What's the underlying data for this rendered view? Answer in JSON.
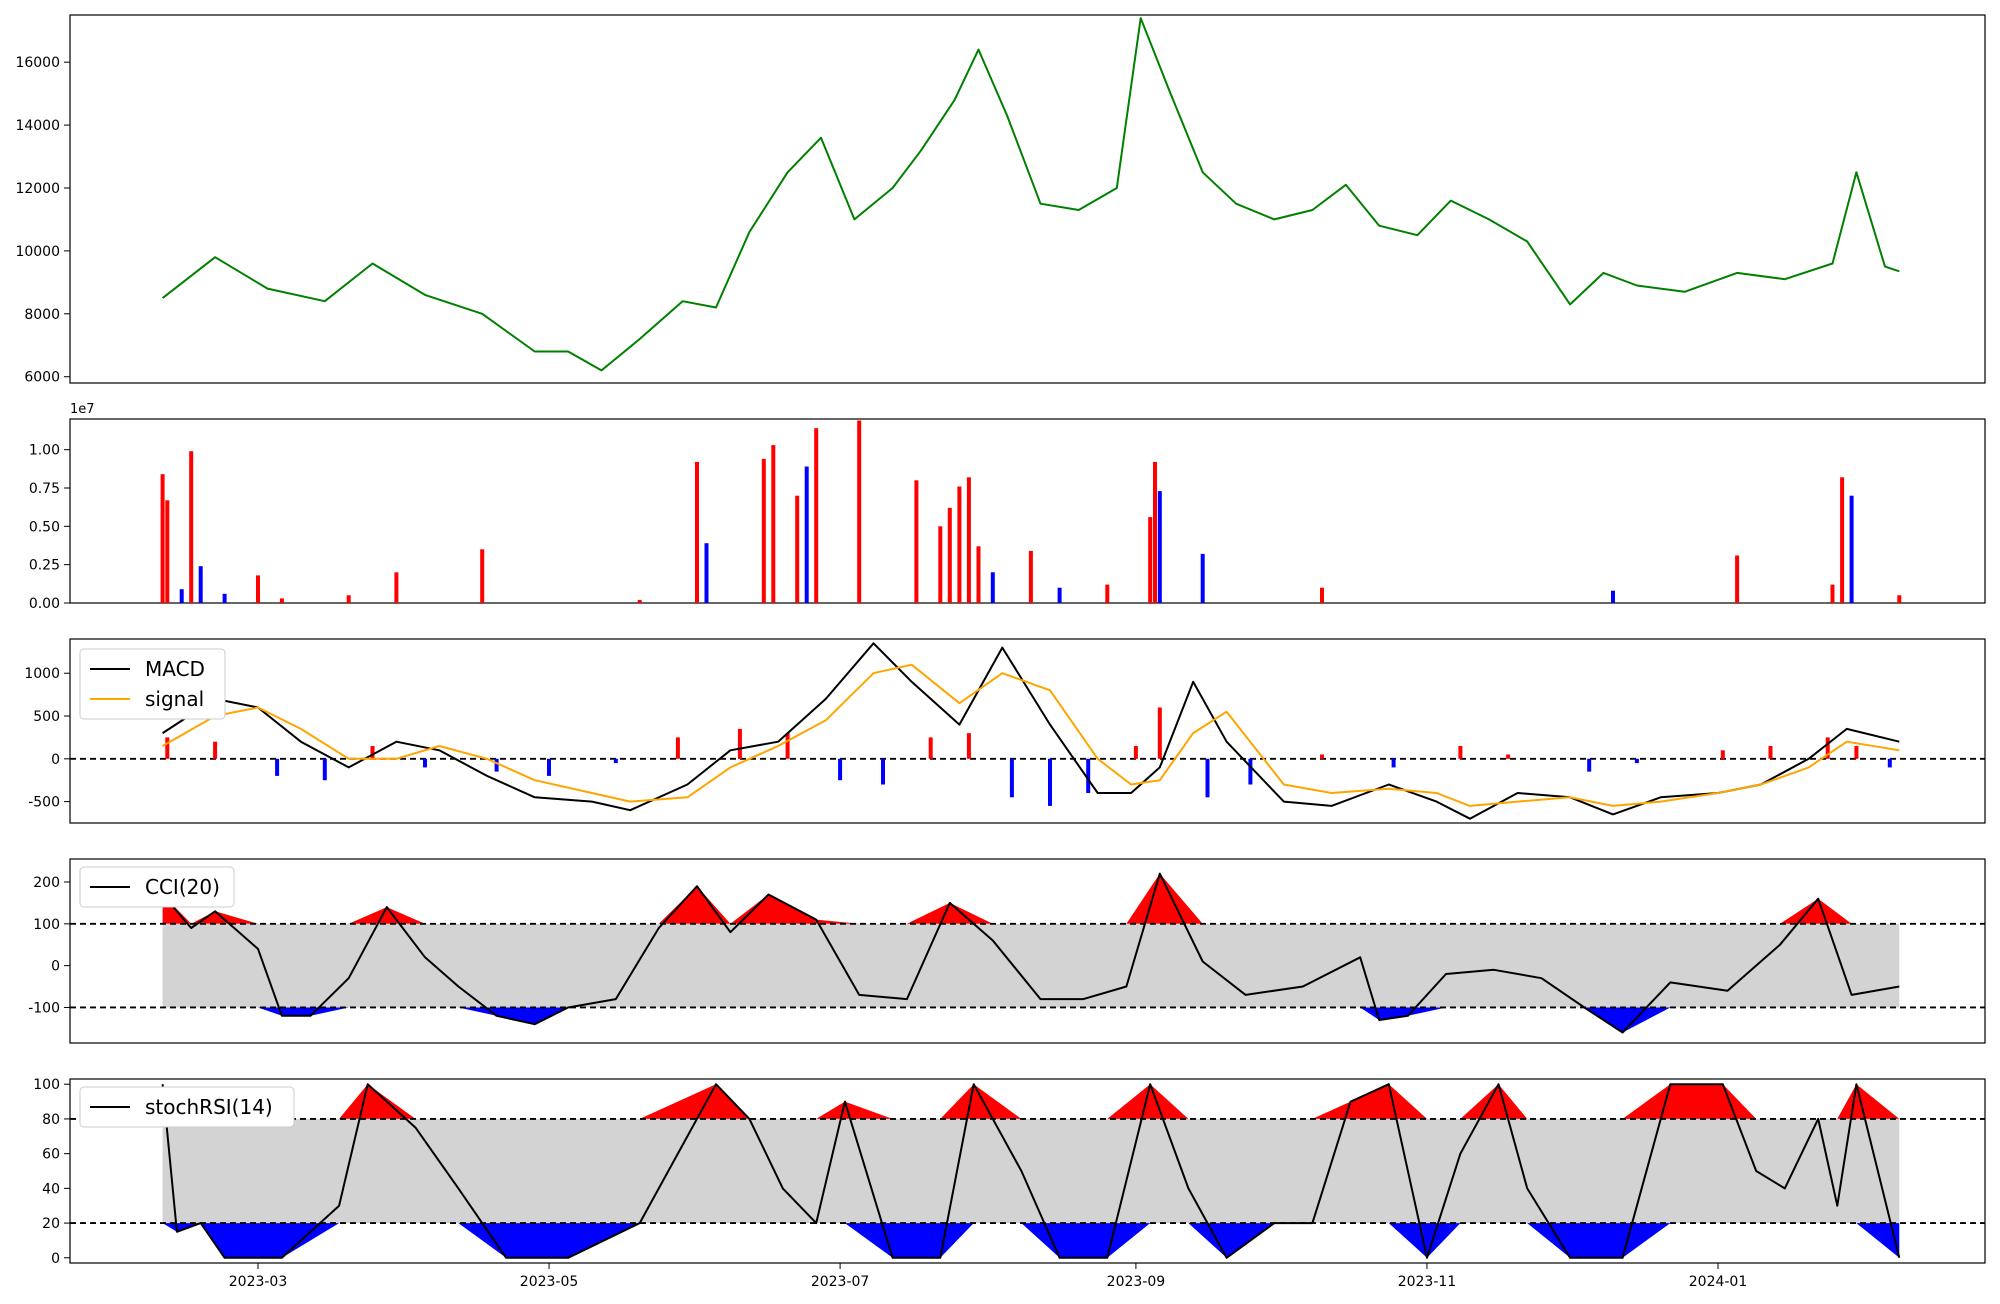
{
  "colors": {
    "price": "#008000",
    "up": "#ff0000",
    "down": "#0000ff",
    "macd": "#000000",
    "signal": "#ffa500",
    "band_fill": "#d3d3d3",
    "threshold_line": "#000000"
  },
  "x_axis": {
    "ticks": [
      "2023-03",
      "2023-05",
      "2023-07",
      "2023-09",
      "2023-11",
      "2024-01"
    ],
    "date_range": [
      "2023-02-09",
      "2024-02-08"
    ]
  },
  "panels": {
    "price": {
      "ylim": [
        5800,
        17500
      ],
      "ticks": [
        "6000",
        "8000",
        "10000",
        "12000",
        "14000",
        "16000"
      ]
    },
    "volume": {
      "offset_label": "1e7",
      "ylim": [
        0,
        1.2
      ],
      "ticks": [
        "0.00",
        "0.25",
        "0.50",
        "0.75",
        "1.00"
      ]
    },
    "macd": {
      "ylim": [
        -750,
        1400
      ],
      "ticks": [
        "-500",
        "0",
        "500",
        "1000"
      ],
      "legend": [
        "MACD",
        "signal"
      ]
    },
    "cci": {
      "ylim": [
        -185,
        255
      ],
      "ticks": [
        "-100",
        "0",
        "100",
        "200"
      ],
      "legend": [
        "CCI(20)"
      ],
      "bands": [
        100,
        -100
      ]
    },
    "stochrsi": {
      "ylim": [
        -3,
        103
      ],
      "ticks": [
        "0",
        "20",
        "40",
        "60",
        "80",
        "100"
      ],
      "legend": [
        "stochRSI(14)"
      ],
      "bands": [
        80,
        20
      ]
    }
  },
  "chart_data": [
    {
      "type": "line",
      "panel": "price",
      "x": [
        "2023-02-09",
        "2023-02-20",
        "2023-03-03",
        "2023-03-15",
        "2023-03-25",
        "2023-04-05",
        "2023-04-17",
        "2023-04-28",
        "2023-05-05",
        "2023-05-12",
        "2023-05-20",
        "2023-05-29",
        "2023-06-05",
        "2023-06-12",
        "2023-06-20",
        "2023-06-27",
        "2023-07-04",
        "2023-07-12",
        "2023-07-18",
        "2023-07-25",
        "2023-07-30",
        "2023-08-05",
        "2023-08-12",
        "2023-08-20",
        "2023-08-28",
        "2023-09-02",
        "2023-09-08",
        "2023-09-15",
        "2023-09-22",
        "2023-09-30",
        "2023-10-08",
        "2023-10-15",
        "2023-10-22",
        "2023-10-30",
        "2023-11-06",
        "2023-11-14",
        "2023-11-22",
        "2023-12-01",
        "2023-12-08",
        "2023-12-15",
        "2023-12-25",
        "2024-01-05",
        "2024-01-15",
        "2024-01-25",
        "2024-01-30",
        "2024-02-05",
        "2024-02-08"
      ],
      "y": [
        8500,
        9800,
        8800,
        8400,
        9600,
        8600,
        8000,
        6800,
        6800,
        6200,
        7200,
        8400,
        8200,
        10600,
        12500,
        13600,
        11000,
        12000,
        13200,
        14800,
        16400,
        14300,
        11500,
        11300,
        12000,
        17400,
        15100,
        12500,
        11500,
        11000,
        11300,
        12100,
        10800,
        10500,
        11600,
        11000,
        10300,
        8300,
        9300,
        8900,
        8700,
        9300,
        9100,
        9600,
        12500,
        9500,
        9350
      ]
    },
    {
      "type": "bar",
      "panel": "volume",
      "x": [
        "2023-02-09",
        "2023-02-10",
        "2023-02-13",
        "2023-02-15",
        "2023-02-17",
        "2023-02-22",
        "2023-03-01",
        "2023-03-06",
        "2023-03-20",
        "2023-03-30",
        "2023-04-17",
        "2023-05-20",
        "2023-06-01",
        "2023-06-03",
        "2023-06-15",
        "2023-06-17",
        "2023-06-22",
        "2023-06-24",
        "2023-06-26",
        "2023-07-05",
        "2023-07-17",
        "2023-07-22",
        "2023-07-24",
        "2023-07-26",
        "2023-07-28",
        "2023-07-30",
        "2023-08-02",
        "2023-08-10",
        "2023-08-16",
        "2023-08-26",
        "2023-09-04",
        "2023-09-05",
        "2023-09-06",
        "2023-09-15",
        "2023-10-10",
        "2023-12-10",
        "2024-01-05",
        "2024-01-25",
        "2024-01-27",
        "2024-01-29",
        "2024-02-08"
      ],
      "values": [
        0.84,
        0.67,
        0.09,
        0.99,
        0.24,
        0.06,
        0.18,
        0.03,
        0.05,
        0.2,
        0.35,
        0.02,
        0.92,
        0.39,
        0.94,
        1.03,
        0.7,
        0.89,
        1.14,
        1.19,
        0.8,
        0.5,
        0.62,
        0.76,
        0.82,
        0.37,
        0.2,
        0.34,
        0.1,
        0.12,
        0.56,
        0.92,
        0.73,
        0.32,
        0.1,
        0.08,
        0.31,
        0.12,
        0.82,
        0.7,
        0.05
      ],
      "direction": [
        "up",
        "up",
        "down",
        "up",
        "down",
        "down",
        "up",
        "up",
        "up",
        "up",
        "up",
        "up",
        "up",
        "down",
        "up",
        "up",
        "up",
        "down",
        "up",
        "up",
        "up",
        "up",
        "up",
        "up",
        "up",
        "up",
        "down",
        "up",
        "down",
        "up",
        "up",
        "up",
        "down",
        "down",
        "up",
        "down",
        "up",
        "up",
        "up",
        "down",
        "up"
      ]
    },
    {
      "type": "line",
      "panel": "macd",
      "series": [
        {
          "name": "MACD",
          "x": [
            "2023-02-09",
            "2023-02-20",
            "2023-03-01",
            "2023-03-10",
            "2023-03-20",
            "2023-03-30",
            "2023-04-08",
            "2023-04-18",
            "2023-04-28",
            "2023-05-10",
            "2023-05-18",
            "2023-05-30",
            "2023-06-08",
            "2023-06-18",
            "2023-06-28",
            "2023-07-08",
            "2023-07-16",
            "2023-07-26",
            "2023-08-04",
            "2023-08-14",
            "2023-08-24",
            "2023-08-31",
            "2023-09-06",
            "2023-09-13",
            "2023-09-20",
            "2023-10-02",
            "2023-10-12",
            "2023-10-24",
            "2023-11-03",
            "2023-11-10",
            "2023-11-20",
            "2023-12-01",
            "2023-12-10",
            "2023-12-20",
            "2024-01-01",
            "2024-01-10",
            "2024-01-20",
            "2024-01-28",
            "2024-02-08"
          ],
          "y": [
            300,
            700,
            600,
            200,
            -100,
            200,
            100,
            -200,
            -450,
            -500,
            -600,
            -300,
            100,
            200,
            700,
            1350,
            900,
            400,
            1300,
            400,
            -400,
            -400,
            -100,
            900,
            200,
            -500,
            -550,
            -300,
            -500,
            -700,
            -400,
            -450,
            -650,
            -450,
            -400,
            -300,
            0,
            350,
            200
          ]
        },
        {
          "name": "signal",
          "x": [
            "2023-02-09",
            "2023-02-20",
            "2023-03-01",
            "2023-03-10",
            "2023-03-20",
            "2023-03-30",
            "2023-04-08",
            "2023-04-18",
            "2023-04-28",
            "2023-05-10",
            "2023-05-18",
            "2023-05-30",
            "2023-06-08",
            "2023-06-18",
            "2023-06-28",
            "2023-07-08",
            "2023-07-16",
            "2023-07-26",
            "2023-08-04",
            "2023-08-14",
            "2023-08-24",
            "2023-08-31",
            "2023-09-06",
            "2023-09-13",
            "2023-09-20",
            "2023-10-02",
            "2023-10-12",
            "2023-10-24",
            "2023-11-03",
            "2023-11-10",
            "2023-11-20",
            "2023-12-01",
            "2023-12-10",
            "2023-12-20",
            "2024-01-01",
            "2024-01-10",
            "2024-01-20",
            "2024-01-28",
            "2024-02-08"
          ],
          "y": [
            150,
            500,
            600,
            350,
            0,
            0,
            150,
            0,
            -250,
            -400,
            -500,
            -450,
            -100,
            150,
            450,
            1000,
            1100,
            650,
            1000,
            800,
            0,
            -300,
            -250,
            300,
            550,
            -300,
            -400,
            -350,
            -400,
            -550,
            -500,
            -450,
            -550,
            -500,
            -400,
            -300,
            -100,
            200,
            100
          ]
        }
      ]
    },
    {
      "type": "bar",
      "panel": "macd-histogram",
      "x": [
        "2023-02-10",
        "2023-02-20",
        "2023-03-05",
        "2023-03-15",
        "2023-03-25",
        "2023-04-05",
        "2023-04-20",
        "2023-05-01",
        "2023-05-15",
        "2023-05-28",
        "2023-06-10",
        "2023-06-20",
        "2023-07-01",
        "2023-07-10",
        "2023-07-20",
        "2023-07-28",
        "2023-08-06",
        "2023-08-14",
        "2023-08-22",
        "2023-09-01",
        "2023-09-06",
        "2023-09-16",
        "2023-09-25",
        "2023-10-10",
        "2023-10-25",
        "2023-11-08",
        "2023-11-18",
        "2023-12-05",
        "2023-12-15",
        "2024-01-02",
        "2024-01-12",
        "2024-01-24",
        "2024-01-30",
        "2024-02-06"
      ],
      "values": [
        250,
        200,
        -200,
        -250,
        150,
        -100,
        -150,
        -200,
        -50,
        250,
        350,
        300,
        -250,
        -300,
        250,
        300,
        -450,
        -550,
        -400,
        150,
        600,
        -450,
        -300,
        50,
        -100,
        150,
        50,
        -150,
        -50,
        100,
        150,
        250,
        150,
        -100
      ]
    },
    {
      "type": "area",
      "panel": "cci",
      "x": [
        "2023-02-09",
        "2023-02-15",
        "2023-02-20",
        "2023-03-01",
        "2023-03-06",
        "2023-03-12",
        "2023-03-20",
        "2023-03-28",
        "2023-04-05",
        "2023-04-12",
        "2023-04-20",
        "2023-04-28",
        "2023-05-05",
        "2023-05-15",
        "2023-05-24",
        "2023-06-01",
        "2023-06-08",
        "2023-06-16",
        "2023-06-26",
        "2023-07-05",
        "2023-07-15",
        "2023-07-24",
        "2023-08-02",
        "2023-08-12",
        "2023-08-21",
        "2023-08-30",
        "2023-09-06",
        "2023-09-15",
        "2023-09-24",
        "2023-10-06",
        "2023-10-18",
        "2023-10-22",
        "2023-10-28",
        "2023-11-05",
        "2023-11-15",
        "2023-11-25",
        "2023-12-04",
        "2023-12-12",
        "2023-12-22",
        "2024-01-03",
        "2024-01-14",
        "2024-01-22",
        "2024-01-29",
        "2024-02-08"
      ],
      "values": [
        170,
        90,
        130,
        40,
        -120,
        -120,
        -30,
        140,
        20,
        -50,
        -120,
        -140,
        -100,
        -80,
        90,
        190,
        80,
        170,
        110,
        -70,
        -80,
        150,
        60,
        -80,
        -80,
        -50,
        220,
        10,
        -70,
        -50,
        20,
        -130,
        -120,
        -20,
        -10,
        -30,
        -100,
        -160,
        -40,
        -60,
        50,
        160,
        -70,
        -50
      ]
    },
    {
      "type": "area",
      "panel": "stochrsi",
      "x": [
        "2023-02-09",
        "2023-02-12",
        "2023-02-17",
        "2023-02-22",
        "2023-03-06",
        "2023-03-18",
        "2023-03-24",
        "2023-04-03",
        "2023-04-12",
        "2023-04-22",
        "2023-05-05",
        "2023-05-20",
        "2023-06-05",
        "2023-06-12",
        "2023-06-19",
        "2023-06-26",
        "2023-07-02",
        "2023-07-12",
        "2023-07-22",
        "2023-07-29",
        "2023-08-08",
        "2023-08-16",
        "2023-08-26",
        "2023-09-04",
        "2023-09-12",
        "2023-09-20",
        "2023-09-30",
        "2023-10-08",
        "2023-10-16",
        "2023-10-24",
        "2023-11-01",
        "2023-11-08",
        "2023-11-16",
        "2023-11-22",
        "2023-12-01",
        "2023-12-12",
        "2023-12-22",
        "2024-01-02",
        "2024-01-09",
        "2024-01-15",
        "2024-01-22",
        "2024-01-26",
        "2024-01-30",
        "2024-02-08"
      ],
      "values": [
        100,
        15,
        20,
        0,
        0,
        30,
        100,
        75,
        40,
        0,
        0,
        20,
        100,
        80,
        40,
        20,
        90,
        0,
        0,
        100,
        50,
        0,
        0,
        100,
        40,
        0,
        20,
        20,
        90,
        100,
        0,
        60,
        100,
        40,
        0,
        0,
        100,
        100,
        50,
        40,
        80,
        30,
        100,
        0
      ]
    }
  ]
}
